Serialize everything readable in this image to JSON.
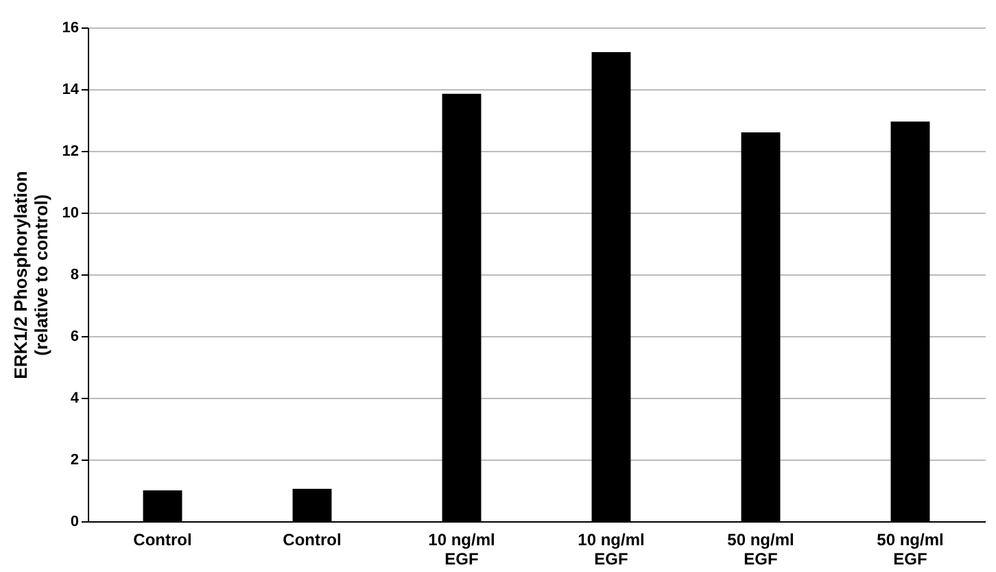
{
  "chart_data": {
    "type": "bar",
    "ylabel": "ERK1/2 Phosphorylation (relative to control)",
    "categories": [
      "Control",
      "Control",
      "10 ng/ml EGF",
      "10 ng/ml EGF",
      "50 ng/ml EGF",
      "50 ng/ml EGF"
    ],
    "values": [
      1.0,
      1.05,
      13.85,
      15.2,
      12.6,
      12.95
    ],
    "color": "#000000",
    "ylim": [
      0,
      16
    ],
    "yticks": [
      0,
      2,
      4,
      6,
      8,
      10,
      12,
      14,
      16
    ],
    "grid": "y"
  }
}
